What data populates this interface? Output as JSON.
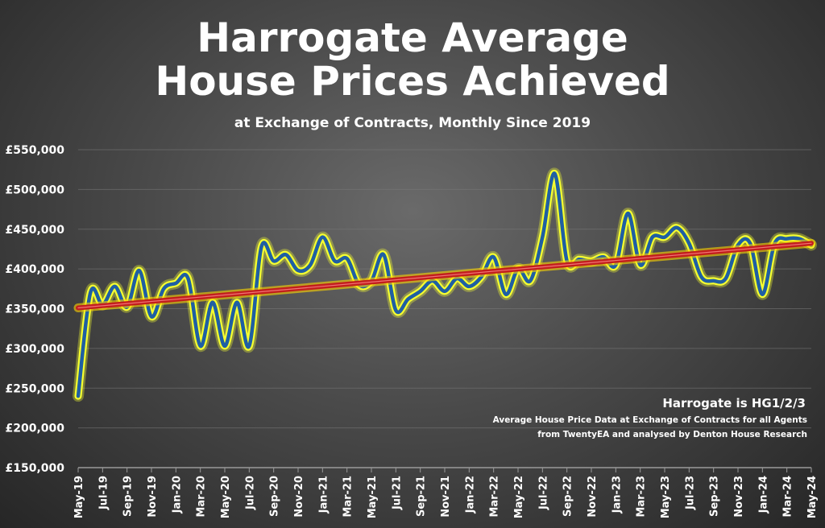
{
  "chart_data": {
    "type": "line",
    "title_lines": [
      "Harrogate Average",
      "House Prices Achieved"
    ],
    "subtitle": "at Exchange of Contracts, Monthly Since 2019",
    "annotation_title": "Harrogate is HG1/2/3",
    "annotation_lines": [
      "Average House Price Data at Exchange of Contracts for all Agents",
      "from TwentyEA and analysed by Denton House Research"
    ],
    "ylim": [
      150000,
      550000
    ],
    "y_ticks": [
      150000,
      200000,
      250000,
      300000,
      350000,
      400000,
      450000,
      500000,
      550000
    ],
    "y_tick_labels": [
      "£150,000",
      "£200,000",
      "£250,000",
      "£300,000",
      "£350,000",
      "£400,000",
      "£450,000",
      "£500,000",
      "£550,000"
    ],
    "grid": true,
    "x": [
      "May-19",
      "Jun-19",
      "Jul-19",
      "Aug-19",
      "Sep-19",
      "Oct-19",
      "Nov-19",
      "Dec-19",
      "Jan-20",
      "Feb-20",
      "Mar-20",
      "Apr-20",
      "May-20",
      "Jun-20",
      "Jul-20",
      "Aug-20",
      "Sep-20",
      "Oct-20",
      "Nov-20",
      "Dec-20",
      "Jan-21",
      "Feb-21",
      "Mar-21",
      "Apr-21",
      "May-21",
      "Jun-21",
      "Jul-21",
      "Aug-21",
      "Sep-21",
      "Oct-21",
      "Nov-21",
      "Dec-21",
      "Jan-22",
      "Feb-22",
      "Mar-22",
      "Apr-22",
      "May-22",
      "Jun-22",
      "Jul-22",
      "Aug-22",
      "Sep-22",
      "Oct-22",
      "Nov-22",
      "Dec-22",
      "Jan-23",
      "Feb-23",
      "Mar-23",
      "Apr-23",
      "May-23",
      "Jun-23",
      "Jul-23",
      "Aug-23",
      "Sep-23",
      "Oct-23",
      "Nov-23",
      "Dec-23",
      "Jan-24",
      "Feb-24",
      "Mar-24",
      "Apr-24",
      "May-24"
    ],
    "x_tick_labels": [
      "May-19",
      "Jul-19",
      "Sep-19",
      "Nov-19",
      "Jan-20",
      "Mar-20",
      "May-20",
      "Jul-20",
      "Sep-20",
      "Nov-20",
      "Jan-21",
      "Mar-21",
      "May-21",
      "Jul-21",
      "Sep-21",
      "Nov-21",
      "Jan-22",
      "Mar-22",
      "May-22",
      "Jul-22",
      "Sep-22",
      "Nov-22",
      "Jan-23",
      "Mar-23",
      "May-23",
      "Jul-23",
      "Sep-23",
      "Nov-23",
      "Jan-24",
      "Mar-24",
      "May-24"
    ],
    "series": [
      {
        "values": [
          240000,
          370000,
          355000,
          378000,
          352000,
          398000,
          340000,
          375000,
          382000,
          388000,
          303000,
          358000,
          303000,
          358000,
          303000,
          428000,
          410000,
          418000,
          398000,
          405000,
          440000,
          410000,
          413000,
          380000,
          385000,
          418000,
          348000,
          362000,
          372000,
          385000,
          372000,
          388000,
          378000,
          390000,
          415000,
          368000,
          400000,
          385000,
          440000,
          520000,
          410000,
          412000,
          410000,
          415000,
          405000,
          470000,
          405000,
          440000,
          440000,
          452000,
          432000,
          390000,
          385000,
          388000,
          430000,
          432000,
          368000,
          432000,
          438000,
          438000,
          430000
        ]
      },
      {
        "type": "trendline",
        "values": [
          351000,
          352400,
          353700,
          355100,
          356400,
          357800,
          359100,
          360500,
          361800,
          363200,
          364600,
          365900,
          367300,
          368600,
          370000,
          371300,
          372700,
          374000,
          375400,
          376700,
          378100,
          379500,
          380800,
          382200,
          383500,
          384900,
          386200,
          387600,
          388900,
          390300,
          391700,
          393000,
          394400,
          395700,
          397100,
          398400,
          399800,
          401100,
          402500,
          403800,
          405200,
          406600,
          407900,
          409300,
          410600,
          412000,
          413300,
          414700,
          416000,
          417400,
          418700,
          420100,
          421500,
          422800,
          424200,
          425500,
          426900,
          428200,
          429600,
          430900,
          432300
        ]
      }
    ],
    "colors": {
      "line": "#1f5fa3",
      "line_glow": "#f5ff30",
      "trend": "#c21e1e",
      "trend_glow": "#ffd400",
      "axis_text": "#ffffff",
      "grid": "#7a7a7a"
    }
  }
}
